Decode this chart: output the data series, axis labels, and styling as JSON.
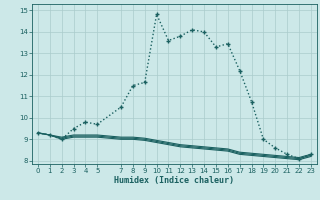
{
  "xlabel": "Humidex (Indice chaleur)",
  "bg_color": "#cce8e8",
  "grid_color": "#aacccc",
  "line_color": "#1a6060",
  "series": [
    {
      "x": [
        0,
        1,
        2,
        3,
        4,
        5,
        7,
        8,
        9,
        10,
        11,
        12,
        13,
        14,
        15,
        16,
        17,
        18,
        19,
        20,
        21,
        22,
        23
      ],
      "y": [
        9.3,
        9.2,
        9.0,
        9.5,
        9.8,
        9.7,
        10.5,
        11.5,
        11.65,
        14.82,
        13.6,
        13.8,
        14.1,
        14.0,
        13.3,
        13.45,
        12.2,
        10.75,
        9.0,
        8.6,
        8.3,
        8.1,
        8.3
      ],
      "marker": "+",
      "linestyle": ":",
      "linewidth": 1.0,
      "markersize": 3.5
    },
    {
      "x": [
        0,
        1,
        2,
        3,
        4,
        5,
        7,
        8,
        9,
        10,
        11,
        12,
        13,
        14,
        15,
        16,
        17,
        18,
        19,
        20,
        21,
        22,
        23
      ],
      "y": [
        9.3,
        9.2,
        9.0,
        9.1,
        9.1,
        9.1,
        9.0,
        9.0,
        8.95,
        8.85,
        8.75,
        8.65,
        8.6,
        8.55,
        8.5,
        8.45,
        8.3,
        8.25,
        8.2,
        8.15,
        8.1,
        8.05,
        8.2
      ],
      "marker": null,
      "linestyle": "-",
      "linewidth": 0.8,
      "markersize": 0
    },
    {
      "x": [
        0,
        1,
        2,
        3,
        4,
        5,
        7,
        8,
        9,
        10,
        11,
        12,
        13,
        14,
        15,
        16,
        17,
        18,
        19,
        20,
        21,
        22,
        23
      ],
      "y": [
        9.3,
        9.2,
        9.05,
        9.15,
        9.15,
        9.15,
        9.05,
        9.05,
        9.0,
        8.9,
        8.8,
        8.7,
        8.65,
        8.6,
        8.55,
        8.5,
        8.35,
        8.3,
        8.25,
        8.2,
        8.15,
        8.1,
        8.25
      ],
      "marker": null,
      "linestyle": "-",
      "linewidth": 0.8,
      "markersize": 0
    },
    {
      "x": [
        0,
        1,
        2,
        3,
        4,
        5,
        7,
        8,
        9,
        10,
        11,
        12,
        13,
        14,
        15,
        16,
        17,
        18,
        19,
        20,
        21,
        22,
        23
      ],
      "y": [
        9.3,
        9.2,
        9.1,
        9.2,
        9.2,
        9.2,
        9.1,
        9.1,
        9.05,
        8.95,
        8.85,
        8.75,
        8.7,
        8.65,
        8.6,
        8.55,
        8.4,
        8.35,
        8.3,
        8.25,
        8.2,
        8.15,
        8.3
      ],
      "marker": null,
      "linestyle": "-",
      "linewidth": 0.8,
      "markersize": 0
    }
  ],
  "xlim": [
    -0.5,
    23.5
  ],
  "ylim": [
    7.85,
    15.3
  ],
  "yticks": [
    8,
    9,
    10,
    11,
    12,
    13,
    14,
    15
  ],
  "xticks": [
    0,
    1,
    2,
    3,
    4,
    5,
    7,
    8,
    9,
    10,
    11,
    12,
    13,
    14,
    15,
    16,
    17,
    18,
    19,
    20,
    21,
    22,
    23
  ],
  "tick_fontsize": 5.0,
  "xlabel_fontsize": 6.0
}
